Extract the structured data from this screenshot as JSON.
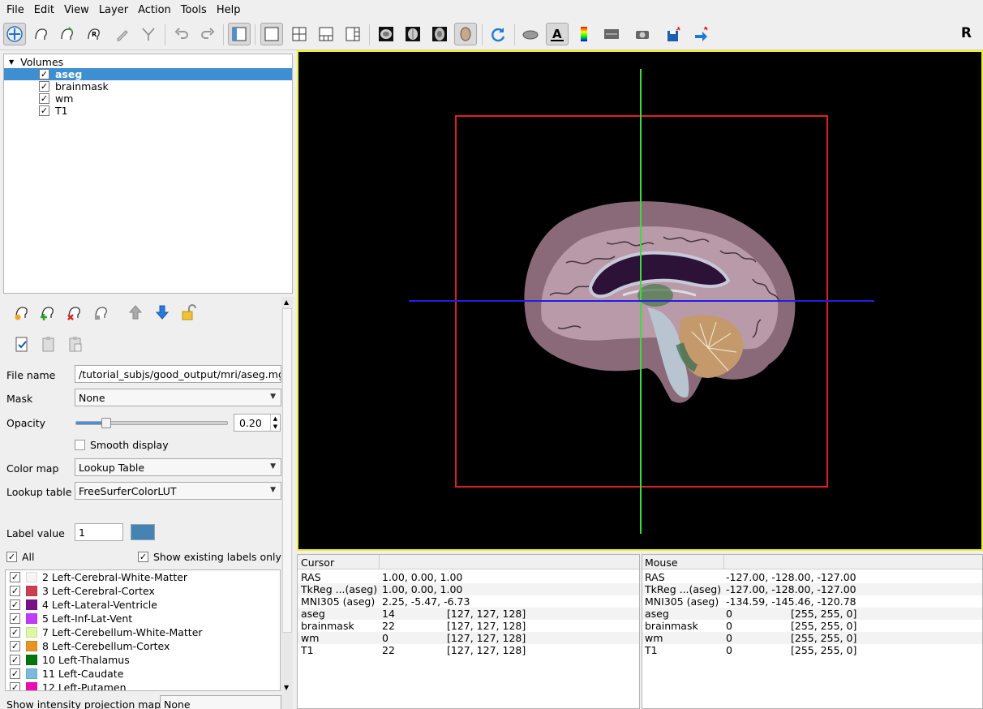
{
  "menu": [
    "File",
    "Edit",
    "View",
    "Layer",
    "Action",
    "Tools",
    "Help"
  ],
  "toolbar": {
    "orientation_label": "R"
  },
  "tree": {
    "root": "Volumes",
    "items": [
      {
        "label": "aseg",
        "checked": "✓"
      },
      {
        "label": "brainmask",
        "checked": "✓"
      },
      {
        "label": "wm",
        "checked": "✓"
      },
      {
        "label": "T1",
        "checked": "✓"
      }
    ]
  },
  "props": {
    "file_name_label": "File name",
    "file_name_value": "/tutorial_subjs/good_output/mri/aseg.mgz",
    "mask_label": "Mask",
    "mask_value": "None",
    "opacity_label": "Opacity",
    "opacity_value": "0.20",
    "opacity_fraction": 0.2,
    "smooth_label": "Smooth display",
    "color_map_label": "Color map",
    "color_map_value": "Lookup Table",
    "lookup_table_label": "Lookup table",
    "lookup_table_value": "FreeSurferColorLUT",
    "label_value_label": "Label value",
    "label_value_value": "1",
    "label_value_color": "#4682b4",
    "all_label": "All",
    "show_existing_label": "Show existing labels only",
    "projection_label": "Show intensity projection map",
    "projection_value": "None"
  },
  "labels": [
    {
      "text": "2 Left-Cerebral-White-Matter",
      "color": "#f5f5f5"
    },
    {
      "text": "3 Left-Cerebral-Cortex",
      "color": "#cd3e4e"
    },
    {
      "text": "4 Left-Lateral-Ventricle",
      "color": "#781286"
    },
    {
      "text": "5 Left-Inf-Lat-Vent",
      "color": "#c43afa"
    },
    {
      "text": "7 Left-Cerebellum-White-Matter",
      "color": "#dcf8a4"
    },
    {
      "text": "8 Left-Cerebellum-Cortex",
      "color": "#e69422"
    },
    {
      "text": "10 Left-Thalamus",
      "color": "#00760e"
    },
    {
      "text": "11 Left-Caudate",
      "color": "#7abadc"
    },
    {
      "text": "12 Left-Putamen",
      "color": "#ec0db0"
    }
  ],
  "cursor_panel": {
    "header": "Cursor",
    "rows": [
      {
        "name": "RAS",
        "value": "1.00, 0.00, 1.00",
        "coord": ""
      },
      {
        "name": "TkReg ...(aseg)",
        "value": "1.00, 0.00, 1.00",
        "coord": ""
      },
      {
        "name": "MNI305 (aseg)",
        "value": "2.25, -5.47, -6.73",
        "coord": ""
      },
      {
        "name": "aseg",
        "value": "14",
        "coord": "[127, 127, 128]"
      },
      {
        "name": "brainmask",
        "value": "22",
        "coord": "[127, 127, 128]"
      },
      {
        "name": "wm",
        "value": "0",
        "coord": "[127, 127, 128]"
      },
      {
        "name": "T1",
        "value": "22",
        "coord": "[127, 127, 128]"
      }
    ]
  },
  "mouse_panel": {
    "header": "Mouse",
    "rows": [
      {
        "name": "RAS",
        "value": "-127.00, -128.00, -127.00",
        "coord": ""
      },
      {
        "name": "TkReg ...(aseg)",
        "value": "-127.00, -128.00, -127.00",
        "coord": ""
      },
      {
        "name": "MNI305 (aseg)",
        "value": "-134.59, -145.46, -120.78",
        "coord": ""
      },
      {
        "name": "aseg",
        "value": "0",
        "coord": "[255, 255, 0]"
      },
      {
        "name": "brainmask",
        "value": "0",
        "coord": "[255, 255, 0]"
      },
      {
        "name": "wm",
        "value": "0",
        "coord": "[255, 255, 0]"
      },
      {
        "name": "T1",
        "value": "0",
        "coord": "[255, 255, 0]"
      }
    ]
  },
  "colors": {
    "selection": "#3d8fd1",
    "viewport_border": "#f1f124",
    "crosshair_vertical": "#3ddc3d",
    "crosshair_horizontal": "#2020e0",
    "bounding_box": "#e02020"
  }
}
